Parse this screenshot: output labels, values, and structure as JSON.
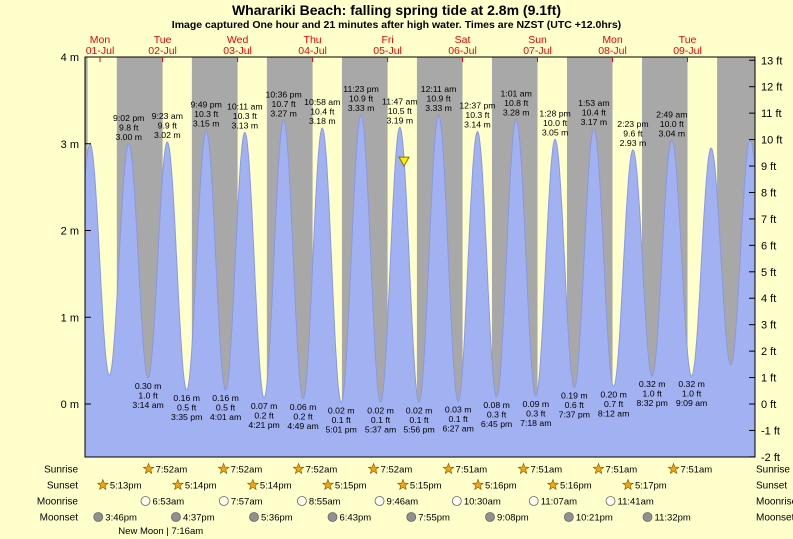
{
  "title": "Wharariki Beach: falling spring tide at 2.8m (9.1ft)",
  "subtitle": "Image captured One hour and 21 minutes after high water. Times are NZST (UTC +12.0hrs)",
  "colors": {
    "background": "#ffffcc",
    "night_band": "#a8a8a8",
    "tide_fill": "#a2b1f2",
    "tide_stroke": "#8a99e0",
    "day_label": "#ee0000",
    "frame": "#000000",
    "text": "#000000",
    "star": "#f2a60d",
    "star_edge": "#7a5200",
    "moon_light": "#fffef0",
    "moon_dark": "#909090",
    "moon_edge": "#666666",
    "marker_fill": "#ffee00",
    "marker_edge": "#8a6d00"
  },
  "chart_data": {
    "type": "area",
    "title": "Wharariki Beach: falling spring tide at 2.8m (9.1ft)",
    "ylabel_left": "meters",
    "ylabel_right": "feet",
    "ylim_meters": [
      -0.61,
      4.0
    ],
    "grid": false,
    "t_start": 7.04,
    "t_end": 221.44,
    "days": [
      {
        "name": "Mon",
        "date": "01-Jul",
        "sunrise_t": 7.87
      },
      {
        "name": "Tue",
        "date": "02-Jul",
        "sunrise_t": 31.87
      },
      {
        "name": "Wed",
        "date": "03-Jul",
        "sunrise_t": 55.87
      },
      {
        "name": "Thu",
        "date": "04-Jul",
        "sunrise_t": 79.87
      },
      {
        "name": "Fri",
        "date": "05-Jul",
        "sunrise_t": 103.87
      },
      {
        "name": "Sat",
        "date": "06-Jul",
        "sunrise_t": 127.85
      },
      {
        "name": "Sun",
        "date": "07-Jul",
        "sunrise_t": 151.85
      },
      {
        "name": "Mon",
        "date": "08-Jul",
        "sunrise_t": 175.85
      },
      {
        "name": "Tue",
        "date": "09-Jul",
        "sunrise_t": 199.85
      }
    ],
    "y_axis_left": {
      "unit": "m",
      "ticks": [
        {
          "v": 0,
          "label": "0 m"
        },
        {
          "v": 1,
          "label": "1 m"
        },
        {
          "v": 2,
          "label": "2 m"
        },
        {
          "v": 3,
          "label": "3 m"
        },
        {
          "v": 4,
          "label": "4 m"
        }
      ]
    },
    "y_axis_right": {
      "unit": "ft",
      "ticks": [
        {
          "v": -2,
          "label": "-2 ft"
        },
        {
          "v": -1,
          "label": "-1 ft"
        },
        {
          "v": 0,
          "label": "0 ft"
        },
        {
          "v": 1,
          "label": "1 ft"
        },
        {
          "v": 2,
          "label": "2 ft"
        },
        {
          "v": 3,
          "label": "3 ft"
        },
        {
          "v": 4,
          "label": "4 ft"
        },
        {
          "v": 5,
          "label": "5 ft"
        },
        {
          "v": 6,
          "label": "6 ft"
        },
        {
          "v": 7,
          "label": "7 ft"
        },
        {
          "v": 8,
          "label": "8 ft"
        },
        {
          "v": 9,
          "label": "9 ft"
        },
        {
          "v": 10,
          "label": "10 ft"
        },
        {
          "v": 11,
          "label": "11 ft"
        },
        {
          "v": 12,
          "label": "12 ft"
        },
        {
          "v": 13,
          "label": "13 ft"
        }
      ]
    },
    "night_bands": [
      [
        7.04,
        7.87
      ],
      [
        17.22,
        31.87
      ],
      [
        41.23,
        55.87
      ],
      [
        65.23,
        79.87
      ],
      [
        89.25,
        103.87
      ],
      [
        113.25,
        127.85
      ],
      [
        137.27,
        151.85
      ],
      [
        161.27,
        175.85
      ],
      [
        185.28,
        199.85
      ],
      [
        209.3,
        221.44
      ]
    ],
    "tide_events": [
      {
        "t": 2.4,
        "h": 0.3
      },
      {
        "t": 8.65,
        "h": 3.0
      },
      {
        "t": 14.83,
        "h": 0.33
      },
      {
        "t": 21.03,
        "h": 3.0,
        "type": "high",
        "label": [
          "9:02 pm",
          "9.8 ft",
          "3.00 m"
        ]
      },
      {
        "t": 27.23,
        "h": 0.3,
        "type": "low",
        "label": [
          "0.30 m",
          "1.0 ft",
          "3:14 am"
        ]
      },
      {
        "t": 33.38,
        "h": 3.02,
        "type": "high",
        "label": [
          "9:23 am",
          "9.9 ft",
          "3.02 m"
        ]
      },
      {
        "t": 39.58,
        "h": 0.16,
        "type": "low",
        "label": [
          "0.16 m",
          "0.5 ft",
          "3:35 pm"
        ]
      },
      {
        "t": 45.82,
        "h": 3.15,
        "type": "high",
        "label": [
          "9:49 pm",
          "10.3 ft",
          "3.15 m"
        ]
      },
      {
        "t": 52.02,
        "h": 0.16,
        "type": "low",
        "label": [
          "0.16 m",
          "0.5 ft",
          "4:01 am"
        ]
      },
      {
        "t": 58.18,
        "h": 3.13,
        "type": "high",
        "label": [
          "10:11 am",
          "10.3 ft",
          "3.13 m"
        ]
      },
      {
        "t": 64.35,
        "h": 0.07,
        "type": "low",
        "label": [
          "0.07 m",
          "0.2 ft",
          "4:21 pm"
        ]
      },
      {
        "t": 70.6,
        "h": 3.27,
        "type": "high",
        "label": [
          "10:36 pm",
          "10.7 ft",
          "3.27 m"
        ]
      },
      {
        "t": 76.82,
        "h": 0.06,
        "type": "low",
        "label": [
          "0.06 m",
          "0.2 ft",
          "4:49 am"
        ]
      },
      {
        "t": 82.97,
        "h": 3.18,
        "type": "high",
        "label": [
          "10:58 am",
          "10.4 ft",
          "3.18 m"
        ]
      },
      {
        "t": 89.02,
        "h": 0.02,
        "type": "low",
        "label": [
          "0.02 m",
          "0.1 ft",
          "5:01 pm"
        ]
      },
      {
        "t": 95.38,
        "h": 3.33,
        "type": "high",
        "label": [
          "11:23 pm",
          "10.9 ft",
          "3.33 m"
        ]
      },
      {
        "t": 101.62,
        "h": 0.02,
        "type": "low",
        "label": [
          "0.02 m",
          "0.1 ft",
          "5:37 am"
        ]
      },
      {
        "t": 107.78,
        "h": 3.19,
        "type": "high",
        "label": [
          "11:47 am",
          "10.5 ft",
          "3.19 m"
        ]
      },
      {
        "t": 113.93,
        "h": 0.02,
        "type": "low",
        "label": [
          "0.02 m",
          "0.1 ft",
          "5:56 pm"
        ]
      },
      {
        "t": 120.18,
        "h": 3.33,
        "type": "high",
        "label": [
          "12:11 am",
          "10.9 ft",
          "3.33 m"
        ]
      },
      {
        "t": 126.45,
        "h": 0.03,
        "type": "low",
        "label": [
          "0.03 m",
          "0.1 ft",
          "6:27 am"
        ]
      },
      {
        "t": 132.62,
        "h": 3.14,
        "type": "high",
        "label": [
          "12:37 pm",
          "10.3 ft",
          "3.14 m"
        ]
      },
      {
        "t": 138.75,
        "h": 0.08,
        "type": "low",
        "label": [
          "0.08 m",
          "0.3 ft",
          "6:45 pm"
        ]
      },
      {
        "t": 145.02,
        "h": 3.28,
        "type": "high",
        "label": [
          "1:01 am",
          "10.8 ft",
          "3.28 m"
        ]
      },
      {
        "t": 151.3,
        "h": 0.09,
        "type": "low",
        "label": [
          "0.09 m",
          "0.3 ft",
          "7:18 am"
        ]
      },
      {
        "t": 157.47,
        "h": 3.05,
        "type": "high",
        "label": [
          "1:28 pm",
          "10.0 ft",
          "3.05 m"
        ]
      },
      {
        "t": 163.62,
        "h": 0.19,
        "type": "low",
        "label": [
          "0.19 m",
          "0.6 ft",
          "7:37 pm"
        ]
      },
      {
        "t": 169.88,
        "h": 3.17,
        "type": "high",
        "label": [
          "1:53 am",
          "10.4 ft",
          "3.17 m"
        ]
      },
      {
        "t": 176.2,
        "h": 0.2,
        "type": "low",
        "label": [
          "0.20 m",
          "0.7 ft",
          "8:12 am"
        ]
      },
      {
        "t": 182.38,
        "h": 2.93,
        "type": "high",
        "label": [
          "2:23 pm",
          "9.6 ft",
          "2.93 m"
        ]
      },
      {
        "t": 188.53,
        "h": 0.32,
        "type": "low",
        "label": [
          "0.32 m",
          "1.0 ft",
          "8:32 pm"
        ]
      },
      {
        "t": 194.82,
        "h": 3.04,
        "type": "high",
        "label": [
          "2:49 am",
          "10.0 ft",
          "3.04 m"
        ]
      },
      {
        "t": 201.15,
        "h": 0.32,
        "type": "low",
        "label": [
          "0.32 m",
          "1.0 ft",
          "9:09 am"
        ]
      },
      {
        "t": 207.4,
        "h": 2.95
      },
      {
        "t": 213.7,
        "h": 0.45
      },
      {
        "t": 219.9,
        "h": 3.05
      },
      {
        "t": 226.2,
        "h": 0.5
      }
    ],
    "marker": {
      "t": 109.13,
      "h": 2.8,
      "meaning": "current tide level 2.8m falling"
    }
  },
  "astro": {
    "rows": [
      {
        "label": "Sunrise",
        "icon": "sun-star-icon",
        "entries": [
          {
            "t": 31.87,
            "time": "7:52am"
          },
          {
            "t": 55.87,
            "time": "7:52am"
          },
          {
            "t": 79.87,
            "time": "7:52am"
          },
          {
            "t": 103.87,
            "time": "7:52am"
          },
          {
            "t": 127.85,
            "time": "7:51am"
          },
          {
            "t": 151.85,
            "time": "7:51am"
          },
          {
            "t": 175.85,
            "time": "7:51am"
          },
          {
            "t": 199.85,
            "time": "7:51am"
          }
        ]
      },
      {
        "label": "Sunset",
        "icon": "sun-star-icon",
        "entries": [
          {
            "t": 17.22,
            "time": "5:13pm"
          },
          {
            "t": 41.23,
            "time": "5:14pm"
          },
          {
            "t": 65.23,
            "time": "5:14pm"
          },
          {
            "t": 89.25,
            "time": "5:15pm"
          },
          {
            "t": 113.25,
            "time": "5:15pm"
          },
          {
            "t": 137.27,
            "time": "5:16pm"
          },
          {
            "t": 161.27,
            "time": "5:16pm"
          },
          {
            "t": 185.28,
            "time": "5:17pm"
          }
        ]
      },
      {
        "label": "Moonrise",
        "icon": "moon-light-icon",
        "entries": [
          {
            "t": 30.88,
            "time": "6:53am"
          },
          {
            "t": 55.95,
            "time": "7:57am"
          },
          {
            "t": 80.92,
            "time": "8:55am"
          },
          {
            "t": 105.77,
            "time": "9:46am"
          },
          {
            "t": 130.5,
            "time": "10:30am"
          },
          {
            "t": 155.12,
            "time": "11:07am"
          },
          {
            "t": 179.68,
            "time": "11:41am"
          }
        ]
      },
      {
        "label": "Moonset",
        "icon": "moon-dark-icon",
        "entries": [
          {
            "t": 15.77,
            "time": "3:46pm"
          },
          {
            "t": 40.62,
            "time": "4:37pm"
          },
          {
            "t": 65.6,
            "time": "5:36pm"
          },
          {
            "t": 90.72,
            "time": "6:43pm"
          },
          {
            "t": 115.92,
            "time": "7:55pm"
          },
          {
            "t": 141.13,
            "time": "9:08pm"
          },
          {
            "t": 166.35,
            "time": "10:21pm"
          },
          {
            "t": 191.53,
            "time": "11:32pm"
          }
        ]
      }
    ],
    "new_moon": {
      "t": 31.27,
      "label": "New Moon | 7:16am"
    }
  }
}
